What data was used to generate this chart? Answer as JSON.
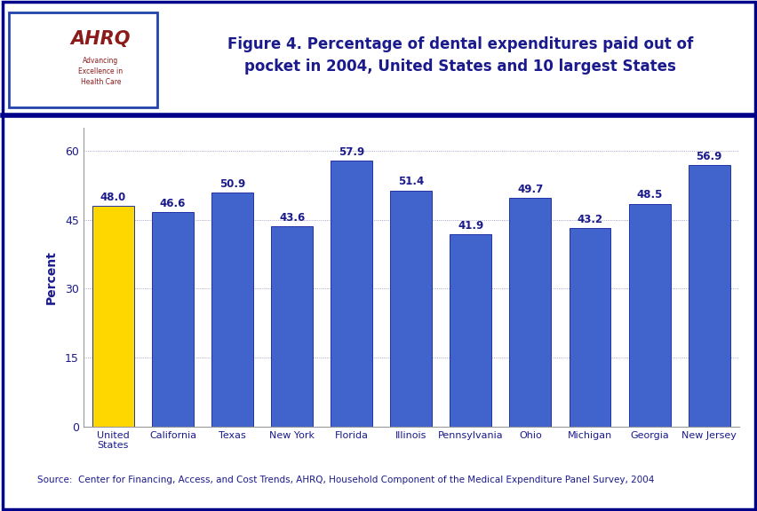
{
  "categories": [
    "United\nStates",
    "California",
    "Texas",
    "New York",
    "Florida",
    "Illinois",
    "Pennsylvania",
    "Ohio",
    "Michigan",
    "Georgia",
    "New Jersey"
  ],
  "values": [
    48.0,
    46.6,
    50.9,
    43.6,
    57.9,
    51.4,
    41.9,
    49.7,
    43.2,
    48.5,
    56.9
  ],
  "bar_colors": [
    "#FFD700",
    "#4163CC",
    "#4163CC",
    "#4163CC",
    "#4163CC",
    "#4163CC",
    "#4163CC",
    "#4163CC",
    "#4163CC",
    "#4163CC",
    "#4163CC"
  ],
  "title_line1": "Figure 4. Percentage of dental expenditures paid out of",
  "title_line2": "pocket in 2004, United States and 10 largest States",
  "ylabel": "Percent",
  "yticks": [
    0,
    15,
    30,
    45,
    60
  ],
  "ylim": [
    0,
    65
  ],
  "source_text": "Source:  Center for Financing, Access, and Cost Trends, AHRQ, Household Component of the Medical Expenditure Panel Survey, 2004",
  "title_color": "#1A1A8C",
  "bar_edge_color": "#2233AA",
  "ylabel_color": "#1A1A8C",
  "tick_label_color": "#1A1A8C",
  "value_label_color": "#1A1A8C",
  "background_color": "#FFFFFF",
  "border_color": "#00008B",
  "horizontal_line_color": "#00008B",
  "source_color": "#1A1A8C",
  "header_bg": "#FFFFFF",
  "logo_box_bg": "#1A8BBB",
  "logo_border_color": "#2244AA",
  "dotted_line_color": "#8888BB"
}
